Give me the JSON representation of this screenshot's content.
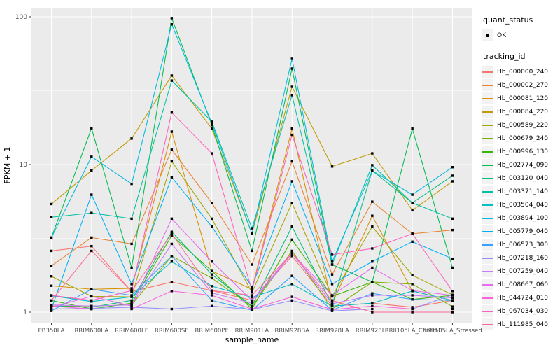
{
  "legend": {
    "quant_status_title": "quant_status",
    "quant_status_items": [
      {
        "label": "OK",
        "symbol": "black-point"
      }
    ],
    "tracking_id_title": "tracking_id"
  },
  "chart_data": {
    "type": "line",
    "title": "",
    "xlabel": "sample_name",
    "ylabel": "FPKM + 1",
    "y_scale": "log10",
    "y_ticks": [
      1,
      10,
      100
    ],
    "y_minor_gridlines": [
      3.162,
      31.62
    ],
    "ylim": [
      0.84,
      115
    ],
    "grid": "on",
    "legend_position": "right",
    "panel_background": "#EBEBEB",
    "gridline_color": "#FFFFFF",
    "point_color": "#000000",
    "axis_text_color": "#4D4D4D",
    "categories": [
      "PB350LA",
      "RRIM600LA",
      "RRIM600LE",
      "RRIM600SE",
      "RRIM600PE",
      "RRIM901LA",
      "RRIM928BA",
      "RRIM928LA",
      "RRIM928LE",
      "RRII105LA_Control",
      "RRII105LA_Stressed"
    ],
    "series": [
      {
        "name": "Hb_000000_240",
        "color": "#F8766D",
        "values": [
          2.6,
          2.8,
          1.38,
          1.6,
          1.4,
          1.2,
          2.4,
          1.1,
          1.15,
          1.08,
          1.2
        ]
      },
      {
        "name": "Hb_000002_270",
        "color": "#EA8331",
        "values": [
          2.06,
          3.2,
          2.9,
          12.6,
          5.5,
          2.1,
          10.5,
          1.8,
          5.6,
          3.4,
          3.6
        ]
      },
      {
        "name": "Hb_000081_120",
        "color": "#D89000",
        "values": [
          1.51,
          1.43,
          1.45,
          16.7,
          1.9,
          1.43,
          17.5,
          1.14,
          4.5,
          1.39,
          1.2
        ]
      },
      {
        "name": "Hb_000084_220",
        "color": "#C09B00",
        "values": [
          5.4,
          9.1,
          15,
          40,
          17.5,
          3.4,
          33.6,
          9.7,
          11.9,
          4.9,
          7.7
        ]
      },
      {
        "name": "Hb_000589_220",
        "color": "#A3A500",
        "values": [
          1.75,
          1.28,
          1.27,
          10.5,
          4.3,
          1.36,
          5.5,
          1.28,
          3.8,
          1.78,
          1.31
        ]
      },
      {
        "name": "Hb_000679_240",
        "color": "#7CAE00",
        "values": [
          1.1,
          1.1,
          1.12,
          2.4,
          1.7,
          1.09,
          2.6,
          1.05,
          1.6,
          1.55,
          1.09
        ]
      },
      {
        "name": "Hb_000996_130",
        "color": "#39B600",
        "values": [
          1.2,
          1.05,
          1.15,
          3.3,
          1.9,
          1.05,
          3.1,
          1.28,
          1.6,
          1.22,
          1.3
        ]
      },
      {
        "name": "Hb_002774_090",
        "color": "#00BB4E",
        "values": [
          3.2,
          17.6,
          2.0,
          98,
          18.5,
          2.6,
          44.6,
          2.1,
          1.6,
          17.5,
          2.0
        ]
      },
      {
        "name": "Hb_003120_040",
        "color": "#00BF7D",
        "values": [
          1.1,
          1.08,
          1.2,
          3.5,
          1.8,
          1.1,
          3.8,
          1.12,
          9.1,
          5.5,
          8.4
        ]
      },
      {
        "name": "Hb_003371_140",
        "color": "#00C1A3",
        "values": [
          4.4,
          4.7,
          4.3,
          37,
          19.5,
          3.7,
          29.5,
          2.1,
          9.9,
          5.5,
          4.3
        ]
      },
      {
        "name": "Hb_003504_040",
        "color": "#00BFC4",
        "values": [
          1.29,
          1.18,
          1.27,
          2.2,
          1.5,
          1.26,
          1.55,
          1.1,
          1.15,
          1.39,
          1.2
        ]
      },
      {
        "name": "Hb_003894_100",
        "color": "#00BAE0",
        "values": [
          3.2,
          11.3,
          7.4,
          89,
          19,
          3.4,
          52,
          2.2,
          9.1,
          6.25,
          9.6
        ]
      },
      {
        "name": "Hb_005779_040",
        "color": "#00B0F6",
        "values": [
          1.05,
          6.25,
          1.55,
          8.2,
          3.8,
          1.48,
          7.7,
          1.55,
          2.2,
          3.0,
          2.3
        ]
      },
      {
        "name": "Hb_006573_300",
        "color": "#35A2FF",
        "values": [
          1.02,
          1.43,
          1.3,
          2.4,
          1.2,
          1.03,
          1.76,
          1.03,
          1.34,
          1.22,
          1.2
        ]
      },
      {
        "name": "Hb_007218_160",
        "color": "#9590FF",
        "values": [
          1.05,
          1.06,
          1.08,
          1.05,
          1.1,
          1.04,
          1.2,
          1.02,
          1.05,
          1.05,
          1.31
        ]
      },
      {
        "name": "Hb_007259_040",
        "color": "#C77CFF",
        "values": [
          1.12,
          1.1,
          1.12,
          2.9,
          1.35,
          1.15,
          2.5,
          1.14,
          1.3,
          1.3,
          1.25
        ]
      },
      {
        "name": "Hb_008667_060",
        "color": "#E76BF3",
        "values": [
          1.08,
          1.28,
          1.1,
          4.3,
          2.2,
          1.2,
          2.5,
          1.3,
          2.0,
          1.4,
          1.3
        ]
      },
      {
        "name": "Hb_044724_010",
        "color": "#FA62DB",
        "values": [
          1.1,
          1.05,
          1.05,
          1.39,
          1.3,
          1.05,
          1.27,
          1.04,
          1.1,
          1.05,
          1.05
        ]
      },
      {
        "name": "Hb_067034_030",
        "color": "#FF62BC",
        "values": [
          1.3,
          1.2,
          1.4,
          22.5,
          11.9,
          1.4,
          15.9,
          2.45,
          2.7,
          3.4,
          1.39
        ]
      },
      {
        "name": "Hb_111985_040",
        "color": "#FF6A98",
        "values": [
          1.2,
          2.6,
          1.38,
          3.4,
          1.4,
          1.3,
          2.5,
          1.2,
          1.0,
          1.0,
          1.0
        ]
      }
    ]
  }
}
